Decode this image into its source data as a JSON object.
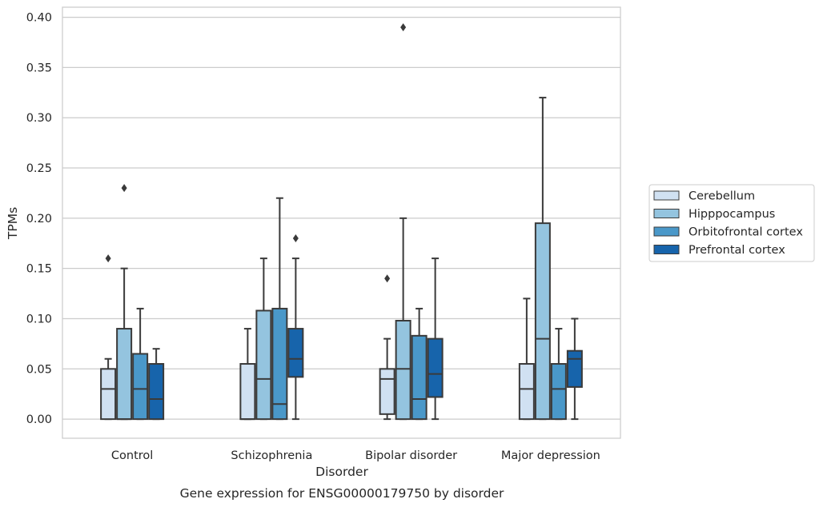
{
  "chart_data": {
    "type": "box",
    "caption": "Gene expression for ENSG00000179750 by disorder",
    "xlabel": "Disorder",
    "ylabel": "TPMs",
    "ylim": [
      -0.019,
      0.41
    ],
    "yticks": [
      "0.00",
      "0.05",
      "0.10",
      "0.15",
      "0.20",
      "0.25",
      "0.30",
      "0.35",
      "0.40"
    ],
    "grid": true,
    "legend_position": "right",
    "categories": [
      "Control",
      "Schizophrenia",
      "Bipolar disorder",
      "Major depression"
    ],
    "series": [
      {
        "name": "Cerebellum",
        "color": "#d0e1f2",
        "boxes": [
          {
            "whislo": 0.0,
            "q1": 0.0,
            "med": 0.03,
            "q3": 0.05,
            "whishi": 0.06,
            "fliers": [
              0.16
            ]
          },
          {
            "whislo": 0.0,
            "q1": 0.0,
            "med": 0.0,
            "q3": 0.055,
            "whishi": 0.09,
            "fliers": []
          },
          {
            "whislo": 0.0,
            "q1": 0.005,
            "med": 0.04,
            "q3": 0.05,
            "whishi": 0.08,
            "fliers": [
              0.14
            ]
          },
          {
            "whislo": 0.0,
            "q1": 0.0,
            "med": 0.03,
            "q3": 0.055,
            "whishi": 0.12,
            "fliers": []
          }
        ]
      },
      {
        "name": "Hipppocampus",
        "color": "#94c4df",
        "boxes": [
          {
            "whislo": 0.0,
            "q1": 0.0,
            "med": 0.0,
            "q3": 0.09,
            "whishi": 0.15,
            "fliers": [
              0.23
            ]
          },
          {
            "whislo": 0.0,
            "q1": 0.0,
            "med": 0.04,
            "q3": 0.108,
            "whishi": 0.16,
            "fliers": []
          },
          {
            "whislo": 0.0,
            "q1": 0.0,
            "med": 0.05,
            "q3": 0.098,
            "whishi": 0.2,
            "fliers": [
              0.39
            ]
          },
          {
            "whislo": 0.0,
            "q1": 0.0,
            "med": 0.08,
            "q3": 0.195,
            "whishi": 0.32,
            "fliers": []
          }
        ]
      },
      {
        "name": "Orbitofrontal cortex",
        "color": "#4a98c9",
        "boxes": [
          {
            "whislo": 0.0,
            "q1": 0.0,
            "med": 0.03,
            "q3": 0.065,
            "whishi": 0.11,
            "fliers": []
          },
          {
            "whislo": 0.0,
            "q1": 0.0,
            "med": 0.015,
            "q3": 0.11,
            "whishi": 0.22,
            "fliers": []
          },
          {
            "whislo": 0.0,
            "q1": 0.0,
            "med": 0.02,
            "q3": 0.083,
            "whishi": 0.11,
            "fliers": []
          },
          {
            "whislo": 0.0,
            "q1": 0.0,
            "med": 0.03,
            "q3": 0.055,
            "whishi": 0.09,
            "fliers": []
          }
        ]
      },
      {
        "name": "Prefrontal cortex",
        "color": "#1764ab",
        "boxes": [
          {
            "whislo": 0.0,
            "q1": 0.0,
            "med": 0.02,
            "q3": 0.055,
            "whishi": 0.07,
            "fliers": []
          },
          {
            "whislo": 0.0,
            "q1": 0.042,
            "med": 0.06,
            "q3": 0.09,
            "whishi": 0.16,
            "fliers": [
              0.18
            ]
          },
          {
            "whislo": 0.0,
            "q1": 0.022,
            "med": 0.045,
            "q3": 0.08,
            "whishi": 0.16,
            "fliers": []
          },
          {
            "whislo": 0.0,
            "q1": 0.032,
            "med": 0.06,
            "q3": 0.068,
            "whishi": 0.1,
            "fliers": []
          }
        ]
      }
    ]
  }
}
